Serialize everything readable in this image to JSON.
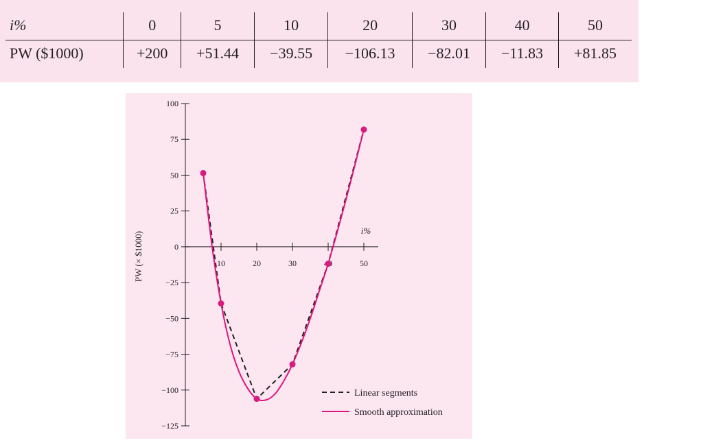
{
  "table": {
    "header_label": "i%",
    "rate_values": [
      "0",
      "5",
      "10",
      "20",
      "30",
      "40",
      "50"
    ],
    "row_label": "PW ($1000)",
    "pw_values": [
      "+200",
      "+51.44",
      "−39.55",
      "−106.13",
      "−82.01",
      "−11.83",
      "+81.85"
    ]
  },
  "chart_data": {
    "type": "line",
    "xlabel": "i%",
    "ylabel": "PW (× $1000)",
    "xlim": [
      0,
      56
    ],
    "ylim": [
      -125,
      100
    ],
    "y_ticks": [
      100,
      75,
      50,
      25,
      0,
      -25,
      -50,
      -75,
      -100,
      -125
    ],
    "y_tick_labels": [
      "100",
      "75",
      "50",
      "25",
      "0",
      "−25",
      "−50",
      "−75",
      "−100",
      "−125"
    ],
    "x_ticks": [
      10,
      20,
      30,
      40,
      50
    ],
    "x_tick_labels": [
      "10",
      "20",
      "30",
      "40",
      "50"
    ],
    "points": [
      {
        "x": 5,
        "y": 51.44
      },
      {
        "x": 10,
        "y": -39.55
      },
      {
        "x": 20,
        "y": -106.13
      },
      {
        "x": 30,
        "y": -82.01
      },
      {
        "x": 40,
        "y": -11.83
      },
      {
        "x": 50,
        "y": 81.85
      }
    ],
    "series": [
      {
        "name": "Linear segments",
        "style": "dashed",
        "color": "#231f20",
        "x": [
          5,
          10,
          20,
          30,
          40,
          50
        ],
        "y": [
          51.44,
          -39.55,
          -106.13,
          -82.01,
          -11.83,
          81.85
        ]
      },
      {
        "name": "Smooth approximation",
        "style": "solid",
        "color": "#e0147d",
        "x": [
          5,
          7.5,
          10,
          12.5,
          15,
          17.5,
          20,
          22.5,
          25,
          27.5,
          30,
          32.5,
          35,
          37.5,
          40,
          42.5,
          45,
          47.5,
          50
        ],
        "y": [
          51.44,
          0,
          -39.55,
          -68,
          -87,
          -99,
          -106.13,
          -107,
          -103,
          -94,
          -82.01,
          -67,
          -50,
          -31,
          -11.83,
          10,
          33,
          57,
          81.85
        ]
      }
    ],
    "marker_color": "#d81b7f",
    "legend_position": "bottom-right",
    "grid": false
  }
}
